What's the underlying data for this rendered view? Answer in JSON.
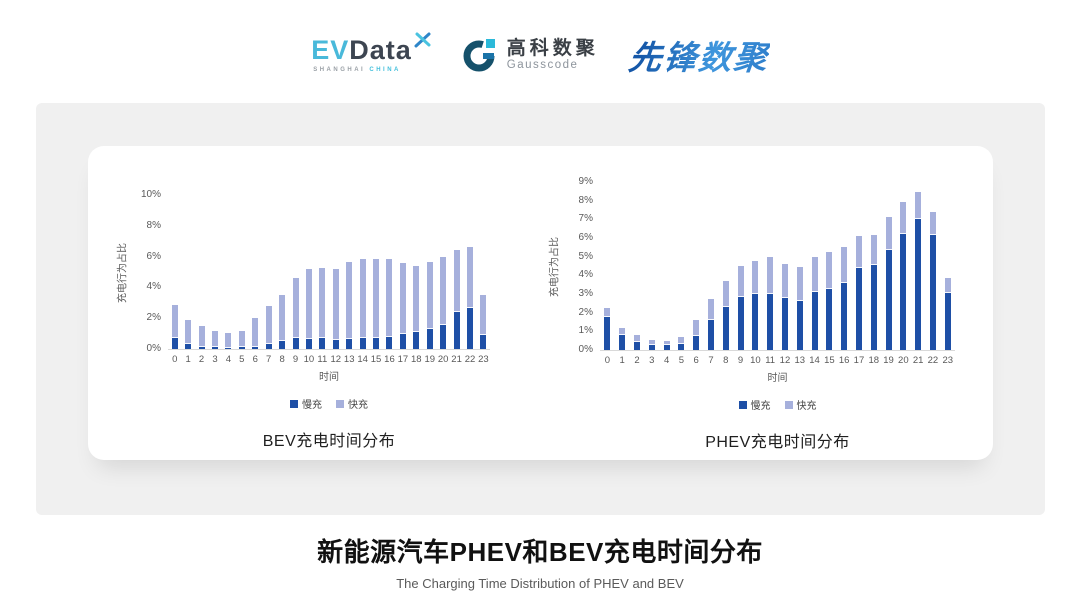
{
  "header": {
    "evdata": {
      "ev": "EV",
      "data": "Data",
      "sub1": "SHANGHAI",
      "sub2": "CHINA"
    },
    "gausscode": {
      "name_cn": "高科数聚",
      "name_en": "Gausscode"
    },
    "pioneer": {
      "name": "先锋数聚"
    }
  },
  "colors": {
    "slow": "#1E4FA6",
    "fast": "#A6B0DC",
    "band": "#F0F0F0",
    "axis_text": "#595959"
  },
  "chart_data": [
    {
      "type": "bar",
      "stacked": true,
      "title": "BEV充电时间分布",
      "xlabel": "时间",
      "ylabel": "充电行为占比",
      "grid": false,
      "legend_position": "bottom",
      "categories": [
        "0",
        "1",
        "2",
        "3",
        "4",
        "5",
        "6",
        "7",
        "8",
        "9",
        "10",
        "11",
        "12",
        "13",
        "14",
        "15",
        "16",
        "17",
        "18",
        "19",
        "20",
        "21",
        "22",
        "23"
      ],
      "ylim": [
        0,
        10
      ],
      "ytick_values": [
        0,
        2,
        4,
        6,
        8,
        10
      ],
      "ytick_labels": [
        "0%",
        "2%",
        "4%",
        "6%",
        "8%",
        "10%"
      ],
      "series": [
        {
          "name": "慢充",
          "color": "#1E4FA6",
          "values": [
            0.7,
            0.35,
            0.15,
            0.1,
            0.08,
            0.1,
            0.15,
            0.35,
            0.5,
            0.7,
            0.65,
            0.7,
            0.6,
            0.65,
            0.7,
            0.7,
            0.8,
            1.0,
            1.1,
            1.3,
            1.6,
            2.4,
            2.7,
            0.9
          ]
        },
        {
          "name": "快充",
          "color": "#A6B0DC",
          "values": [
            2.2,
            1.55,
            1.35,
            1.05,
            0.95,
            1.05,
            1.85,
            2.45,
            3.05,
            3.95,
            4.55,
            4.6,
            4.65,
            5.05,
            5.2,
            5.2,
            5.1,
            4.6,
            4.3,
            4.4,
            4.4,
            4.1,
            4.0,
            2.65
          ]
        }
      ]
    },
    {
      "type": "bar",
      "stacked": true,
      "title": "PHEV充电时间分布",
      "xlabel": "时间",
      "ylabel": "充电行为占比",
      "grid": false,
      "legend_position": "bottom",
      "categories": [
        "0",
        "1",
        "2",
        "3",
        "4",
        "5",
        "6",
        "7",
        "8",
        "9",
        "10",
        "11",
        "12",
        "13",
        "14",
        "15",
        "16",
        "17",
        "18",
        "19",
        "20",
        "21",
        "22",
        "23"
      ],
      "ylim": [
        0,
        9
      ],
      "ytick_values": [
        0,
        1,
        2,
        3,
        4,
        5,
        6,
        7,
        8,
        9
      ],
      "ytick_labels": [
        "0%",
        "1%",
        "2%",
        "3%",
        "4%",
        "5%",
        "6%",
        "7%",
        "8%",
        "9%"
      ],
      "series": [
        {
          "name": "慢充",
          "color": "#1E4FA6",
          "values": [
            1.8,
            0.8,
            0.45,
            0.25,
            0.25,
            0.3,
            0.75,
            1.6,
            2.3,
            2.85,
            3.0,
            3.0,
            2.8,
            2.65,
            3.1,
            3.3,
            3.6,
            4.4,
            4.6,
            5.4,
            6.25,
            7.05,
            6.2,
            3.05
          ]
        },
        {
          "name": "快充",
          "color": "#A6B0DC",
          "values": [
            0.45,
            0.4,
            0.35,
            0.3,
            0.25,
            0.4,
            0.85,
            1.15,
            1.4,
            1.7,
            1.8,
            2.0,
            1.85,
            1.85,
            1.9,
            2.0,
            1.95,
            1.75,
            1.6,
            1.75,
            1.75,
            1.45,
            1.25,
            0.85
          ]
        }
      ]
    }
  ],
  "footer": {
    "title": "新能源汽车PHEV和BEV充电时间分布",
    "subtitle": "The Charging Time Distribution of PHEV and BEV"
  }
}
